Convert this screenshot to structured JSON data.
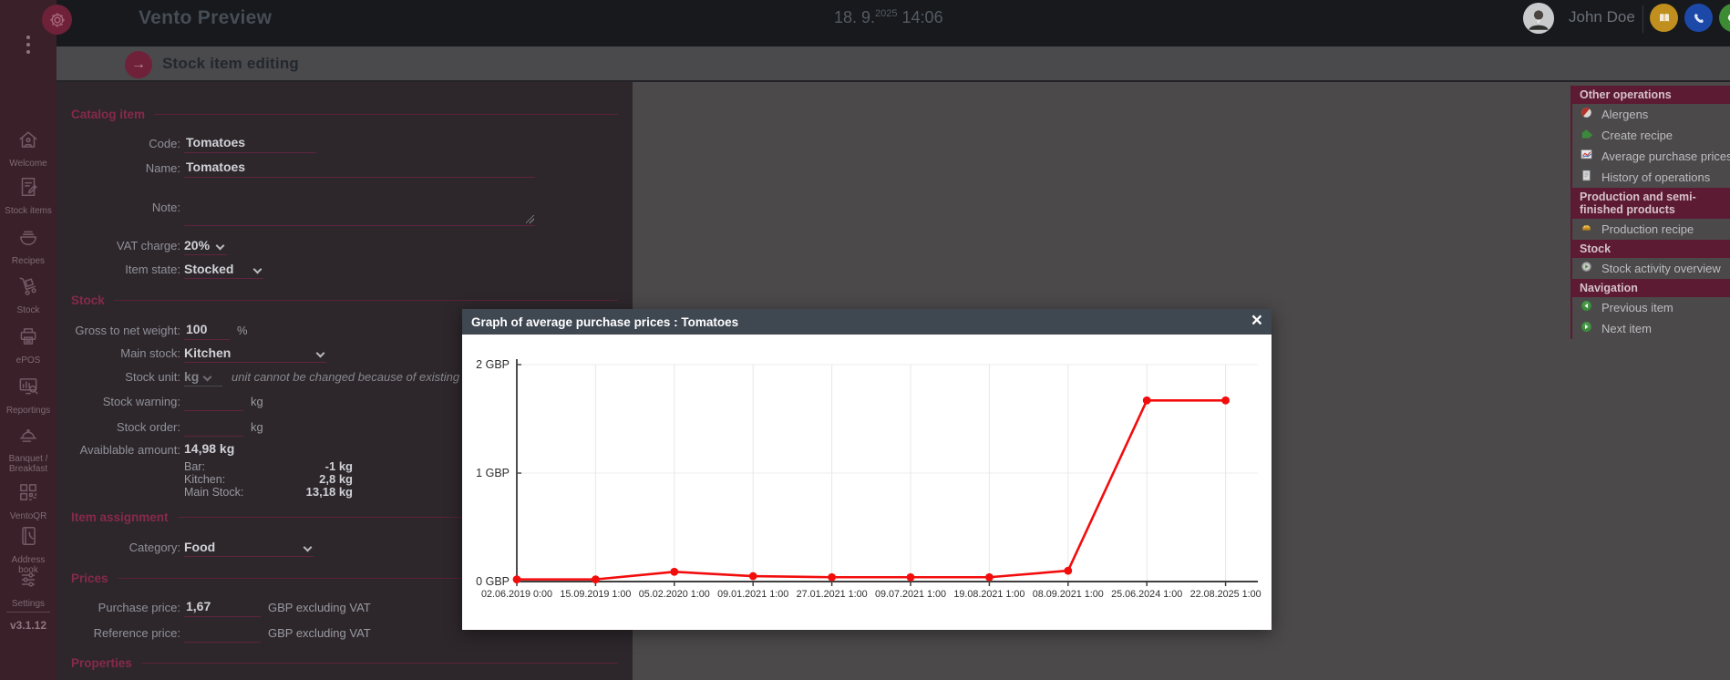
{
  "header": {
    "app_title": "Vento Preview",
    "date_day": "18. 9.",
    "date_year": "2025",
    "time": "14:06",
    "user_name": "John Doe",
    "icons": {
      "book": "address-book",
      "phone": "phone",
      "chat": "chat",
      "power": "logout-power"
    }
  },
  "sidebar": {
    "items": [
      {
        "label": "Welcome",
        "icon": "home"
      },
      {
        "label": "Stock items",
        "icon": "docedit"
      },
      {
        "label": "Recipes",
        "icon": "bowl"
      },
      {
        "label": "Stock",
        "icon": "dolly"
      },
      {
        "label": "ePOS",
        "icon": "printer"
      },
      {
        "label": "Reportings",
        "icon": "report"
      },
      {
        "label": "Banquet / Breakfast",
        "icon": "cloche"
      },
      {
        "label": "VentoQR",
        "icon": "qr"
      },
      {
        "label": "Address book",
        "icon": "abook"
      },
      {
        "label": "Settings",
        "icon": "sliders"
      }
    ],
    "version": "v3.1.12"
  },
  "page": {
    "title": "Stock item editing"
  },
  "form": {
    "catalog": {
      "heading": "Catalog item",
      "code_label": "Code:",
      "code_value": "Tomatoes",
      "name_label": "Name:",
      "name_value": "Tomatoes",
      "note_label": "Note:",
      "vat_label": "VAT charge:",
      "vat_value": "20%",
      "state_label": "Item state:",
      "state_value": "Stocked"
    },
    "stock": {
      "heading": "Stock",
      "gross_label": "Gross to net weight:",
      "gross_value": "100",
      "gross_unit": "%",
      "main_stock_label": "Main stock:",
      "main_stock_value": "Kitchen",
      "unit_label": "Stock unit:",
      "unit_value": "kg",
      "unit_note": "unit cannot be changed because of existing st",
      "warning_label": "Stock warning:",
      "warning_unit": "kg",
      "order_label": "Stock order:",
      "order_unit": "kg",
      "available_label": "Avaiblable amount:",
      "available_value": "14,98 kg",
      "breakdown": [
        {
          "label": "Bar:",
          "value": "-1 kg"
        },
        {
          "label": "Kitchen:",
          "value": "2,8 kg"
        },
        {
          "label": "Main Stock:",
          "value": "13,18 kg"
        }
      ]
    },
    "assignment": {
      "heading": "Item assignment",
      "category_label": "Category:",
      "category_value": "Food"
    },
    "prices": {
      "heading": "Prices",
      "purchase_label": "Purchase price:",
      "purchase_value": "1,67",
      "purchase_note": "GBP excluding VAT",
      "reference_label": "Reference price:",
      "reference_note": "GBP excluding VAT"
    },
    "properties": {
      "heading": "Properties"
    }
  },
  "right_panel": {
    "groups": [
      {
        "header": "Other operations",
        "items": [
          {
            "label": "Alergens",
            "icon": "allergen"
          },
          {
            "label": "Create recipe",
            "icon": "puzzle"
          },
          {
            "label": "Average purchase prices",
            "icon": "minichart"
          },
          {
            "label": "History of operations",
            "icon": "docpage"
          }
        ]
      },
      {
        "header": "Production and semi-finished products",
        "items": [
          {
            "label": "Production recipe",
            "icon": "cake"
          }
        ]
      },
      {
        "header": "Stock",
        "items": [
          {
            "label": "Stock activity overview",
            "icon": "activity"
          }
        ]
      },
      {
        "header": "Navigation",
        "items": [
          {
            "label": "Previous item",
            "icon": "prev"
          },
          {
            "label": "Next item",
            "icon": "next"
          }
        ]
      }
    ]
  },
  "modal": {
    "title": "Graph of average purchase prices : Tomatoes",
    "close_label": "×"
  },
  "chart_data": {
    "type": "line",
    "title": "Graph of average purchase prices : Tomatoes",
    "x": [
      "02.06.2019 0:00",
      "15.09.2019 1:00",
      "05.02.2020 1:00",
      "09.01.2021 1:00",
      "27.01.2021 1:00",
      "09.07.2021 1:00",
      "19.08.2021 1:00",
      "08.09.2021 1:00",
      "25.06.2024 1:00",
      "22.08.2025 1:00"
    ],
    "series": [
      {
        "name": "Average purchase price",
        "values": [
          0.02,
          0.02,
          0.09,
          0.05,
          0.04,
          0.04,
          0.04,
          0.1,
          1.67,
          1.67
        ]
      }
    ],
    "ylabel": "GBP",
    "ylim": [
      0,
      2
    ],
    "yticks": [
      {
        "value": 0,
        "label": "0 GBP"
      },
      {
        "value": 1,
        "label": "1 GBP"
      },
      {
        "value": 2,
        "label": "2 GBP"
      }
    ],
    "grid": true,
    "legend": "none",
    "line_color": "#f20d0d"
  }
}
